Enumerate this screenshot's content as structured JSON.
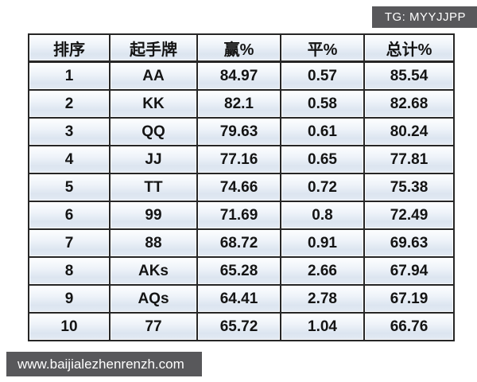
{
  "badges": {
    "tg": "TG: MYYJJPP",
    "website": "www.baijialezhenrenzh.com"
  },
  "colors": {
    "badge_background": "#58585b",
    "badge_text": "#ffffff",
    "table_border": "#262626",
    "cell_gradient_top": "#fdfeff",
    "cell_gradient_bottom": "#dce5f0",
    "text": "#141414"
  },
  "chart_data": {
    "type": "table",
    "title": "",
    "headers": [
      "排序",
      "起手牌",
      "赢%",
      "平%",
      "总计%"
    ],
    "rows": [
      [
        "1",
        "AA",
        "84.97",
        "0.57",
        "85.54"
      ],
      [
        "2",
        "KK",
        "82.1",
        "0.58",
        "82.68"
      ],
      [
        "3",
        "QQ",
        "79.63",
        "0.61",
        "80.24"
      ],
      [
        "4",
        "JJ",
        "77.16",
        "0.65",
        "77.81"
      ],
      [
        "5",
        "TT",
        "74.66",
        "0.72",
        "75.38"
      ],
      [
        "6",
        "99",
        "71.69",
        "0.8",
        "72.49"
      ],
      [
        "7",
        "88",
        "68.72",
        "0.91",
        "69.63"
      ],
      [
        "8",
        "AKs",
        "65.28",
        "2.66",
        "67.94"
      ],
      [
        "9",
        "AQs",
        "64.41",
        "2.78",
        "67.19"
      ],
      [
        "10",
        "77",
        "65.72",
        "1.04",
        "66.76"
      ]
    ]
  }
}
